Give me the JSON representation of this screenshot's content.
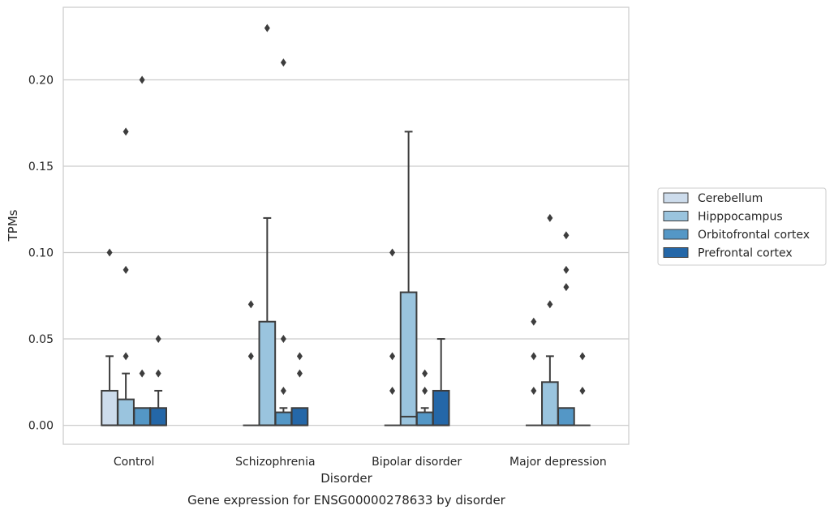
{
  "chart_data": {
    "type": "boxplot",
    "title": "Gene expression for ENSG00000278633 by disorder",
    "xlabel": "Disorder",
    "ylabel": "TPMs",
    "ylim": [
      -0.011,
      0.242
    ],
    "yticks": [
      0.0,
      0.05,
      0.1,
      0.15,
      0.2
    ],
    "ytick_labels": [
      "0.00",
      "0.05",
      "0.10",
      "0.15",
      "0.20"
    ],
    "grid": "horizontal",
    "legend_position": "right",
    "categories": [
      "Control",
      "Schizophrenia",
      "Bipolar disorder",
      "Major depression"
    ],
    "series": [
      {
        "name": "Cerebellum",
        "color": "#cddcec",
        "boxes": [
          {
            "q1": 0.0,
            "median": 0.0,
            "q3": 0.02,
            "whislo": 0.0,
            "whishi": 0.04,
            "fliers": [
              0.1
            ]
          },
          {
            "q1": 0.0,
            "median": 0.0,
            "q3": 0.0,
            "whislo": 0.0,
            "whishi": 0.0,
            "fliers": [
              0.04,
              0.07
            ]
          },
          {
            "q1": 0.0,
            "median": 0.0,
            "q3": 0.0,
            "whislo": 0.0,
            "whishi": 0.0,
            "fliers": [
              0.02,
              0.04,
              0.1
            ]
          },
          {
            "q1": 0.0,
            "median": 0.0,
            "q3": 0.0,
            "whislo": 0.0,
            "whishi": 0.0,
            "fliers": [
              0.02,
              0.04,
              0.06
            ]
          }
        ]
      },
      {
        "name": "Hipppocampus",
        "color": "#9ac4de",
        "boxes": [
          {
            "q1": 0.0,
            "median": 0.0,
            "q3": 0.015,
            "whislo": 0.0,
            "whishi": 0.03,
            "fliers": [
              0.04,
              0.09,
              0.17
            ]
          },
          {
            "q1": 0.0,
            "median": 0.0,
            "q3": 0.06,
            "whislo": 0.0,
            "whishi": 0.12,
            "fliers": [
              0.23
            ]
          },
          {
            "q1": 0.0,
            "median": 0.005,
            "q3": 0.077,
            "whislo": 0.0,
            "whishi": 0.17,
            "fliers": []
          },
          {
            "q1": 0.0,
            "median": 0.0,
            "q3": 0.025,
            "whislo": 0.0,
            "whishi": 0.04,
            "fliers": [
              0.07,
              0.12
            ]
          }
        ]
      },
      {
        "name": "Orbitofrontal cortex",
        "color": "#5497c6",
        "boxes": [
          {
            "q1": 0.0,
            "median": 0.0,
            "q3": 0.01,
            "whislo": 0.0,
            "whishi": 0.01,
            "fliers": [
              0.03,
              0.2
            ]
          },
          {
            "q1": 0.0,
            "median": 0.0,
            "q3": 0.0075,
            "whislo": 0.0,
            "whishi": 0.01,
            "fliers": [
              0.02,
              0.05,
              0.21
            ]
          },
          {
            "q1": 0.0,
            "median": 0.0,
            "q3": 0.0075,
            "whislo": 0.0,
            "whishi": 0.01,
            "fliers": [
              0.02,
              0.03
            ]
          },
          {
            "q1": 0.0,
            "median": 0.0,
            "q3": 0.01,
            "whislo": 0.0,
            "whishi": 0.01,
            "fliers": [
              0.08,
              0.09,
              0.11
            ]
          }
        ]
      },
      {
        "name": "Prefrontal cortex",
        "color": "#2467a8",
        "boxes": [
          {
            "q1": 0.0,
            "median": 0.0,
            "q3": 0.01,
            "whislo": 0.0,
            "whishi": 0.02,
            "fliers": [
              0.03,
              0.05
            ]
          },
          {
            "q1": 0.0,
            "median": 0.0,
            "q3": 0.01,
            "whislo": 0.0,
            "whishi": 0.01,
            "fliers": [
              0.03,
              0.04
            ]
          },
          {
            "q1": 0.0,
            "median": 0.0,
            "q3": 0.02,
            "whislo": 0.0,
            "whishi": 0.05,
            "fliers": []
          },
          {
            "q1": 0.0,
            "median": 0.0,
            "q3": 0.0,
            "whislo": 0.0,
            "whishi": 0.0,
            "fliers": [
              0.02,
              0.04
            ]
          }
        ]
      }
    ]
  }
}
